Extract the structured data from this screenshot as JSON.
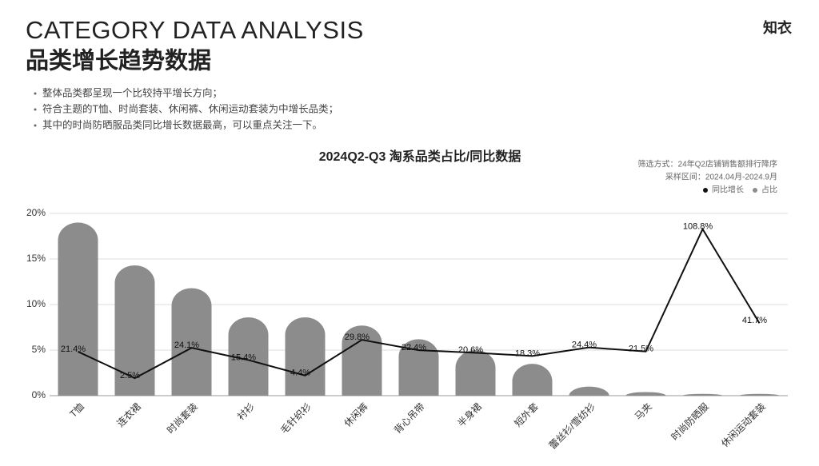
{
  "header": {
    "title_en": "CATEGORY DATA ANALYSIS",
    "title_zh": "品类增长趋势数据",
    "logo": "知衣"
  },
  "bullets": [
    "整体品类都呈现一个比较持平增长方向；",
    "符合主题的T恤、时尚套装、休闲裤、休闲运动套装为中增长品类；",
    "其中的时尚防晒服品类同比增长数据最高，可以重点关注一下。"
  ],
  "chart_data": {
    "type": "bar",
    "title": "2024Q2-Q3 淘系品类占比/同比数据",
    "notes": [
      "筛选方式：24年Q2店铺销售额排行降序",
      "采样区间：2024.04月-2024.9月"
    ],
    "categories": [
      "T恤",
      "连衣裙",
      "时尚套装",
      "衬衫",
      "毛针织衫",
      "休闲裤",
      "背心吊带",
      "半身裙",
      "短外套",
      "蕾丝衫/雪纺衫",
      "马夹",
      "时尚防晒服",
      "休闲运动套装"
    ],
    "series": [
      {
        "name": "同比增长",
        "type": "line",
        "color": "#111111",
        "axis": "y2",
        "values": [
          21.4,
          2.5,
          24.1,
          15.4,
          4.4,
          29.8,
          22.4,
          20.6,
          18.3,
          24.4,
          21.5,
          108.8,
          41.7
        ],
        "value_labels": [
          "21.4%",
          "2.5%",
          "24.1%",
          "15.4%",
          "4.4%",
          "29.8%",
          "22.4%",
          "20.6%",
          "18.3%",
          "24.4%",
          "21.5%",
          "108.8%",
          "41.7%"
        ]
      },
      {
        "name": "占比",
        "type": "bar",
        "color": "#8c8c8c",
        "values": [
          19.0,
          14.3,
          11.8,
          8.6,
          8.6,
          7.7,
          6.2,
          5.0,
          3.5,
          1.0,
          0.4,
          0.2,
          0.2
        ]
      }
    ],
    "ylim": [
      0,
      20
    ],
    "yticks": [
      {
        "value": 0,
        "label": "0%"
      },
      {
        "value": 5,
        "label": "5%"
      },
      {
        "value": 10,
        "label": "10%"
      },
      {
        "value": 15,
        "label": "15%"
      },
      {
        "value": 20,
        "label": "20%"
      }
    ],
    "y2lim": [
      -10,
      120
    ],
    "grid": true,
    "legend": "top-right"
  }
}
